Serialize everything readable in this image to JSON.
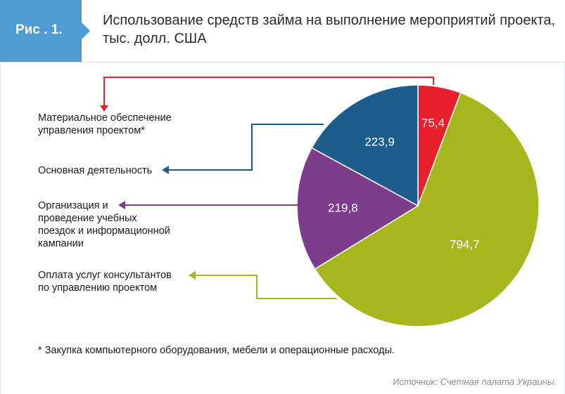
{
  "header": {
    "figure_label": "Рис . 1.",
    "title_line1": "Использование средств займа на выполнение мероприятий проекта,",
    "title_line2": "тыс. долл. США"
  },
  "chart_data": {
    "type": "pie",
    "title": "Использование средств займа на выполнение мероприятий проекта, тыс. долл. США",
    "slices": [
      {
        "label": "Материальное обеспечение управления проектом*",
        "value": 75.4,
        "value_label": "75,4",
        "color": "#e8202e"
      },
      {
        "label": "Оплата услуг консультантов по управлению проектом",
        "value": 794.7,
        "value_label": "794,7",
        "color": "#a6b71e"
      },
      {
        "label": "Организация и проведение учебных поездок и информационной кампании",
        "value": 219.8,
        "value_label": "219,8",
        "color": "#7d3b8c"
      },
      {
        "label": "Основная деятельность",
        "value": 223.9,
        "value_label": "223,9",
        "color": "#1d5d8c"
      }
    ]
  },
  "labels": {
    "material_line1": "Материальное обеспечение",
    "material_line2": "управления проектом*",
    "core": "Основная деятельность",
    "trips_line1": "Организация и",
    "trips_line2": "проведение учебных",
    "trips_line3": "поездок и информационной",
    "trips_line4": "кампании",
    "consult_line1": "Оплата услуг консультантов",
    "consult_line2": "по управлению проектом"
  },
  "footnote": "* Закупка компьютерного оборудования, мебели и операционные расходы.",
  "source": "Источник: Счетная палата Украины."
}
